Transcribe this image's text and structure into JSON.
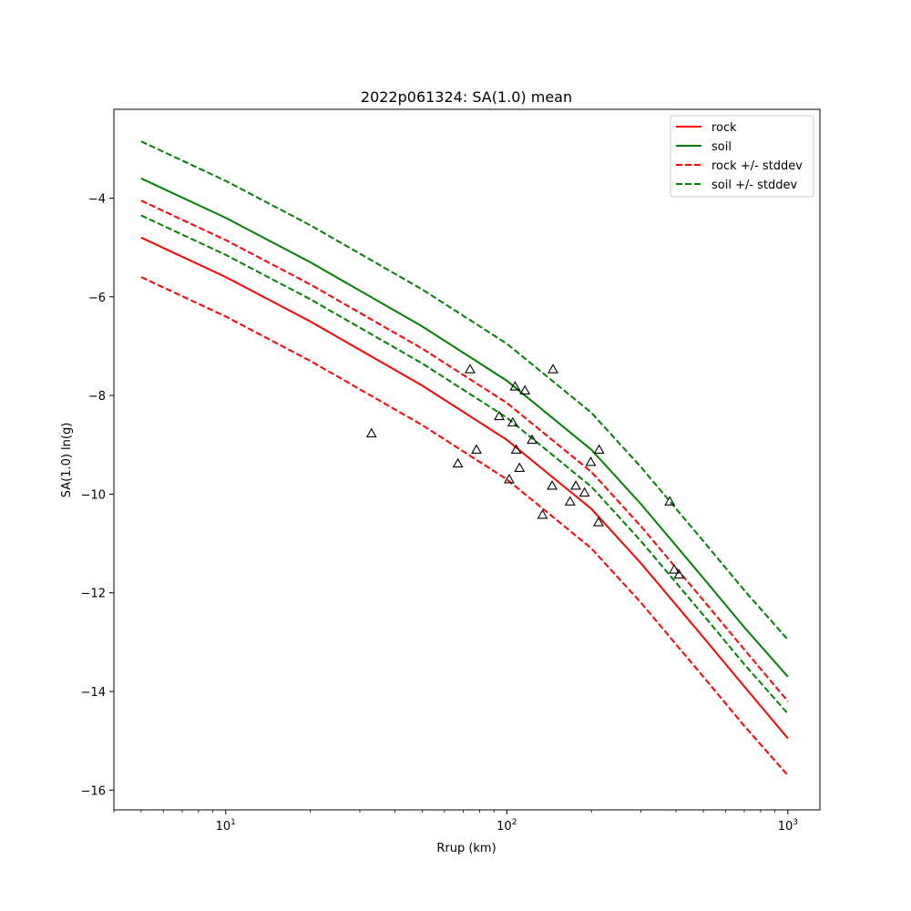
{
  "chart_data": {
    "type": "line",
    "title": "2022p061324: SA(1.0) mean",
    "xlabel": "Rrup (km)",
    "ylabel": "SA(1.0) ln(g)",
    "xscale": "log",
    "xlim": [
      4,
      1300
    ],
    "ylim": [
      -16.4,
      -2.2
    ],
    "xticks_major": [
      {
        "value": 10,
        "label": "10",
        "sup": "1"
      },
      {
        "value": 100,
        "label": "10",
        "sup": "2"
      },
      {
        "value": 1000,
        "label": "10",
        "sup": "3"
      }
    ],
    "yticks": [
      -16,
      -14,
      -12,
      -10,
      -8,
      -6,
      -4
    ],
    "ytick_labels": [
      "−16",
      "−14",
      "−12",
      "−10",
      "−8",
      "−6",
      "−4"
    ],
    "grid": false,
    "legend_position": "top-right",
    "series": [
      {
        "name": "rock",
        "color": "#ff0000",
        "dash": "solid",
        "x": [
          5,
          10,
          20,
          50,
          100,
          200,
          300,
          500,
          700,
          1000
        ],
        "y": [
          -4.8,
          -5.6,
          -6.5,
          -7.8,
          -8.9,
          -10.3,
          -11.4,
          -12.9,
          -13.9,
          -14.95
        ]
      },
      {
        "name": "soil",
        "color": "#008000",
        "dash": "solid",
        "x": [
          5,
          10,
          20,
          50,
          100,
          200,
          300,
          500,
          700,
          1000
        ],
        "y": [
          -3.6,
          -4.4,
          -5.3,
          -6.6,
          -7.7,
          -9.1,
          -10.2,
          -11.7,
          -12.7,
          -13.7
        ]
      },
      {
        "name": "rock +/- stddev",
        "color": "#ff0000",
        "dash": "dashed",
        "x": [
          5,
          10,
          20,
          50,
          100,
          200,
          300,
          500,
          700,
          1000
        ],
        "y": [
          -4.05,
          -4.85,
          -5.75,
          -7.05,
          -8.15,
          -9.55,
          -10.65,
          -12.15,
          -13.15,
          -14.2
        ]
      },
      {
        "name": "",
        "color": "#ff0000",
        "dash": "dashed",
        "x": [
          5,
          10,
          20,
          50,
          100,
          200,
          300,
          500,
          700,
          1000
        ],
        "y": [
          -5.6,
          -6.4,
          -7.3,
          -8.6,
          -9.7,
          -11.1,
          -12.2,
          -13.7,
          -14.7,
          -15.7
        ]
      },
      {
        "name": "soil +/- stddev",
        "color": "#008000",
        "dash": "dashed",
        "x": [
          5,
          10,
          20,
          50,
          100,
          200,
          300,
          500,
          700,
          1000
        ],
        "y": [
          -2.85,
          -3.65,
          -4.55,
          -5.85,
          -6.95,
          -8.35,
          -9.45,
          -10.95,
          -11.95,
          -12.95
        ]
      },
      {
        "name": "",
        "color": "#008000",
        "dash": "dashed",
        "x": [
          5,
          10,
          20,
          50,
          100,
          200,
          300,
          500,
          700,
          1000
        ],
        "y": [
          -4.35,
          -5.15,
          -6.05,
          -7.35,
          -8.45,
          -9.85,
          -10.95,
          -12.45,
          -13.45,
          -14.45
        ]
      }
    ],
    "observations": {
      "marker": "triangle",
      "x": [
        33,
        67,
        74,
        78,
        94,
        102,
        105,
        108,
        111,
        116,
        123,
        107,
        134,
        145,
        146,
        168,
        176,
        189,
        199,
        212,
        213,
        380,
        394,
        410
      ],
      "y": [
        -8.77,
        -9.38,
        -7.47,
        -9.1,
        -8.42,
        -9.7,
        -8.55,
        -9.1,
        -9.47,
        -7.9,
        -8.9,
        -7.82,
        -10.42,
        -9.83,
        -7.47,
        -10.15,
        -9.83,
        -9.97,
        -9.35,
        -10.57,
        -9.1,
        -10.15,
        -11.53,
        -11.63
      ]
    }
  }
}
